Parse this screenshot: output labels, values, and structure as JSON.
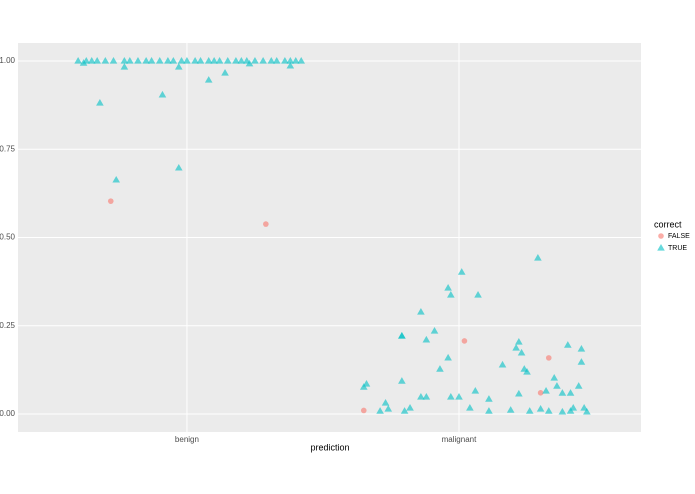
{
  "chart_data": {
    "type": "scatter",
    "x_label": "prediction",
    "legend_title": "correct",
    "legend_position": "right",
    "grid": true,
    "xlim": [
      0.379,
      2.669
    ],
    "ylim": [
      -0.051,
      1.051
    ],
    "xticks": [
      {
        "value": 1,
        "label": "benign"
      },
      {
        "value": 2,
        "label": "malignant"
      }
    ],
    "yticks": [
      {
        "value": 0,
        "label": "0.00"
      },
      {
        "value": 0.25,
        "label": "0.25"
      },
      {
        "value": 0.5,
        "label": "0.50"
      },
      {
        "value": 0.75,
        "label": "0.75"
      },
      {
        "value": 1,
        "label": "1.00"
      }
    ],
    "series": [
      {
        "name": "FALSE",
        "color": "#F8766D",
        "shape": "circle",
        "x": [
          0.72,
          1.29,
          1.65,
          2.02,
          2.3,
          2.33
        ],
        "values": [
          0.603,
          0.538,
          0.01,
          0.207,
          0.06,
          0.159
        ]
      },
      {
        "name": "TRUE",
        "color": "#00BFC4",
        "shape": "triangle",
        "x": [
          0.6,
          0.63,
          0.65,
          0.67,
          0.7,
          0.73,
          0.77,
          0.79,
          0.82,
          0.85,
          0.87,
          0.9,
          0.93,
          0.95,
          0.98,
          1.0,
          1.03,
          1.05,
          1.08,
          1.1,
          1.12,
          1.15,
          1.18,
          1.2,
          1.22,
          1.25,
          1.28,
          1.31,
          1.33,
          1.36,
          1.38,
          1.4,
          1.42,
          0.68,
          0.74,
          0.91,
          0.97,
          1.08,
          1.14,
          0.97,
          0.77,
          0.62,
          1.38,
          1.23,
          1.65,
          1.66,
          1.71,
          1.73,
          1.74,
          1.79,
          1.79,
          1.79,
          1.82,
          1.8,
          1.86,
          1.86,
          1.88,
          1.88,
          1.91,
          1.93,
          1.96,
          1.97,
          1.96,
          2.01,
          1.97,
          2.0,
          2.04,
          2.06,
          2.07,
          2.11,
          2.11,
          2.16,
          2.19,
          2.21,
          2.22,
          2.23,
          2.22,
          2.24,
          2.25,
          2.26,
          2.29,
          2.3,
          2.32,
          2.33,
          2.35,
          2.36,
          2.38,
          2.38,
          2.4,
          2.41,
          2.41,
          2.44,
          2.45,
          2.45,
          2.46,
          2.47,
          2.42
        ],
        "values": [
          1,
          1,
          1,
          1,
          1,
          1,
          1,
          1,
          1,
          1,
          1,
          1,
          1,
          1,
          1,
          1,
          1,
          1,
          1,
          1,
          1,
          1,
          1,
          1,
          1,
          1,
          1,
          1,
          1,
          1,
          1,
          1,
          1,
          0.881,
          0.663,
          0.904,
          0.697,
          0.946,
          0.966,
          0.983,
          0.983,
          0.994,
          0.986,
          0.992,
          0.076,
          0.085,
          0.008,
          0.031,
          0.014,
          0.221,
          0.221,
          0.093,
          0.017,
          0.008,
          0.048,
          0.289,
          0.21,
          0.048,
          0.235,
          0.127,
          0.357,
          0.337,
          0.159,
          0.402,
          0.048,
          0.048,
          0.017,
          0.065,
          0.337,
          0.008,
          0.042,
          0.139,
          0.011,
          0.187,
          0.204,
          0.173,
          0.057,
          0.127,
          0.119,
          0.008,
          0.442,
          0.014,
          0.065,
          0.008,
          0.102,
          0.079,
          0.006,
          0.059,
          0.195,
          0.008,
          0.059,
          0.079,
          0.147,
          0.184,
          0.017,
          0.006,
          0.017
        ]
      }
    ]
  }
}
